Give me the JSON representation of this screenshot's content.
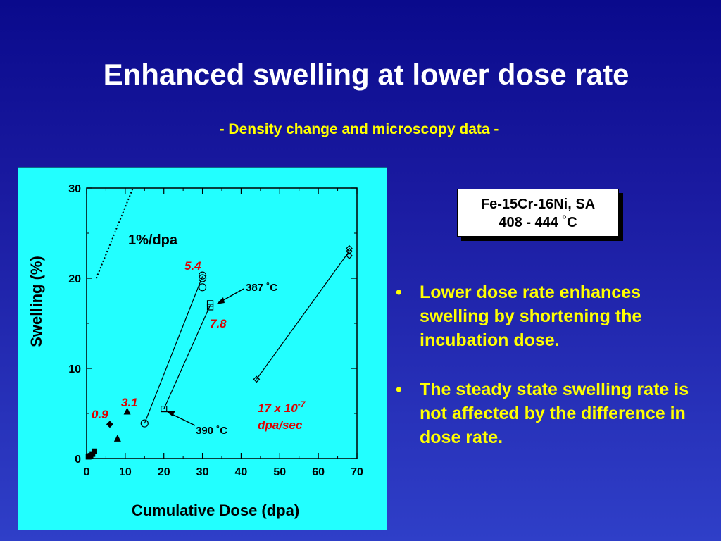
{
  "slide": {
    "title": "Enhanced swelling at lower dose rate",
    "subtitle": "- Density change and microscopy data -"
  },
  "legend": {
    "line1": "Fe-15Cr-16Ni, SA",
    "line2": "408 - 444 ˚C"
  },
  "bullets": [
    "Lower dose rate enhances swelling by shortening the incubation dose.",
    "The steady state swelling rate is not affected by the difference in dose rate."
  ],
  "colors": {
    "annotation_red": "#dd0000",
    "panel": "#22ffff",
    "bullet_text": "#ffff00"
  },
  "chart_data": {
    "type": "scatter",
    "xlabel": "Cumulative Dose (dpa)",
    "ylabel": "Swelling (%)",
    "xlim": [
      0,
      70
    ],
    "ylim": [
      0,
      30
    ],
    "xticks": [
      "0",
      "10",
      "20",
      "30",
      "40",
      "50",
      "60",
      "70"
    ],
    "yticks": [
      "0",
      "10",
      "20",
      "30"
    ],
    "reference_line": {
      "label": "1%/dpa",
      "x": [
        2.5,
        12
      ],
      "y": [
        20,
        30
      ]
    },
    "series": [
      {
        "rate_label": "0.9",
        "marker": "filled-square",
        "points": [
          [
            0.5,
            0.2
          ],
          [
            1.0,
            0.3
          ],
          [
            1.5,
            0.5
          ],
          [
            2.0,
            0.8
          ]
        ]
      },
      {
        "rate_label": "0.9",
        "marker": "filled-diamond",
        "points": [
          [
            6.0,
            3.8
          ]
        ]
      },
      {
        "rate_label": "3.1",
        "marker": "filled-triangle",
        "points": [
          [
            8.0,
            2.2
          ],
          [
            10.5,
            5.2
          ]
        ]
      },
      {
        "rate_label": "5.4",
        "marker": "open-circle",
        "points": [
          [
            15,
            3.9
          ],
          [
            30,
            19.0
          ],
          [
            30,
            20.0
          ],
          [
            30,
            20.3
          ]
        ]
      },
      {
        "rate_label": "7.8",
        "marker": "open-square",
        "points": [
          [
            20,
            5.5
          ],
          [
            32,
            16.8
          ],
          [
            32,
            17.2
          ]
        ]
      },
      {
        "rate_label": "17 x 10",
        "marker": "open-diamond",
        "points": [
          [
            44,
            8.8
          ],
          [
            68,
            22.5
          ],
          [
            68,
            23.0
          ],
          [
            68,
            23.3
          ]
        ]
      }
    ],
    "fit_lines": [
      {
        "x": [
          15,
          30
        ],
        "y": [
          3.9,
          20.2
        ]
      },
      {
        "x": [
          20,
          32
        ],
        "y": [
          5.5,
          17.0
        ]
      },
      {
        "x": [
          44,
          68
        ],
        "y": [
          8.8,
          23.0
        ]
      }
    ],
    "annotations": {
      "rate_0_9": "0.9",
      "rate_3_1": "3.1",
      "rate_5_4": "5.4",
      "rate_7_8": "7.8",
      "rate_17_main": "17 x 10",
      "rate_17_exp": "-7",
      "rate_17_unit": "dpa/sec",
      "dose_ratio": "1%/dpa",
      "temp_387": "387 ˚C",
      "temp_390": "390 ˚C"
    }
  }
}
